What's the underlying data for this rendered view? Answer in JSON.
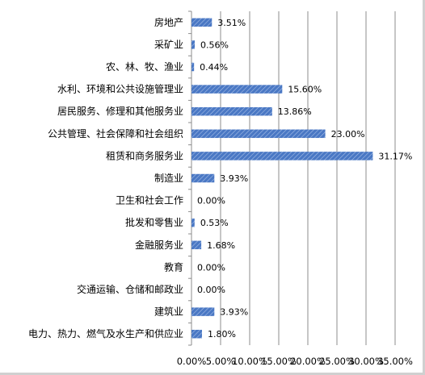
{
  "colors": {
    "bar": "#4a78c4",
    "bar_stripe": "#a8c0e8",
    "grid": "#8c8c8c",
    "axis": "#8c8c8c"
  },
  "chart_data": {
    "type": "bar",
    "orientation": "horizontal",
    "title": "",
    "xlabel": "",
    "ylabel": "",
    "xlim": [
      0,
      35
    ],
    "grid": true,
    "categories": [
      "房地产",
      "采矿业",
      "农、林、牧、渔业",
      "水利、环境和公共设施管理业",
      "居民服务、修理和其他服务业",
      "公共管理、社会保障和社会组织",
      "租赁和商务服务业",
      "制造业",
      "卫生和社会工作",
      "批发和零售业",
      "金融服务业",
      "教育",
      "交通运输、仓储和邮政业",
      "建筑业",
      "电力、热力、燃气及水生产和供应业"
    ],
    "values": [
      3.51,
      0.56,
      0.44,
      15.6,
      13.86,
      23.0,
      31.17,
      3.93,
      0.0,
      0.53,
      1.68,
      0.0,
      0.0,
      3.93,
      1.8
    ],
    "value_labels": [
      "3.51%",
      "0.56%",
      "0.44%",
      "15.60%",
      "13.86%",
      "23.00%",
      "31.17%",
      "3.93%",
      "0.00%",
      "0.53%",
      "1.68%",
      "0.00%",
      "0.00%",
      "3.93%",
      "1.80%"
    ],
    "ticks": [
      0,
      5,
      10,
      15,
      20,
      25,
      30,
      35
    ],
    "tick_labels": [
      "0.00%",
      "5.00%",
      "10.00%",
      "15.00%",
      "20.00%",
      "25.00%",
      "30.00%",
      "35.00%"
    ]
  }
}
